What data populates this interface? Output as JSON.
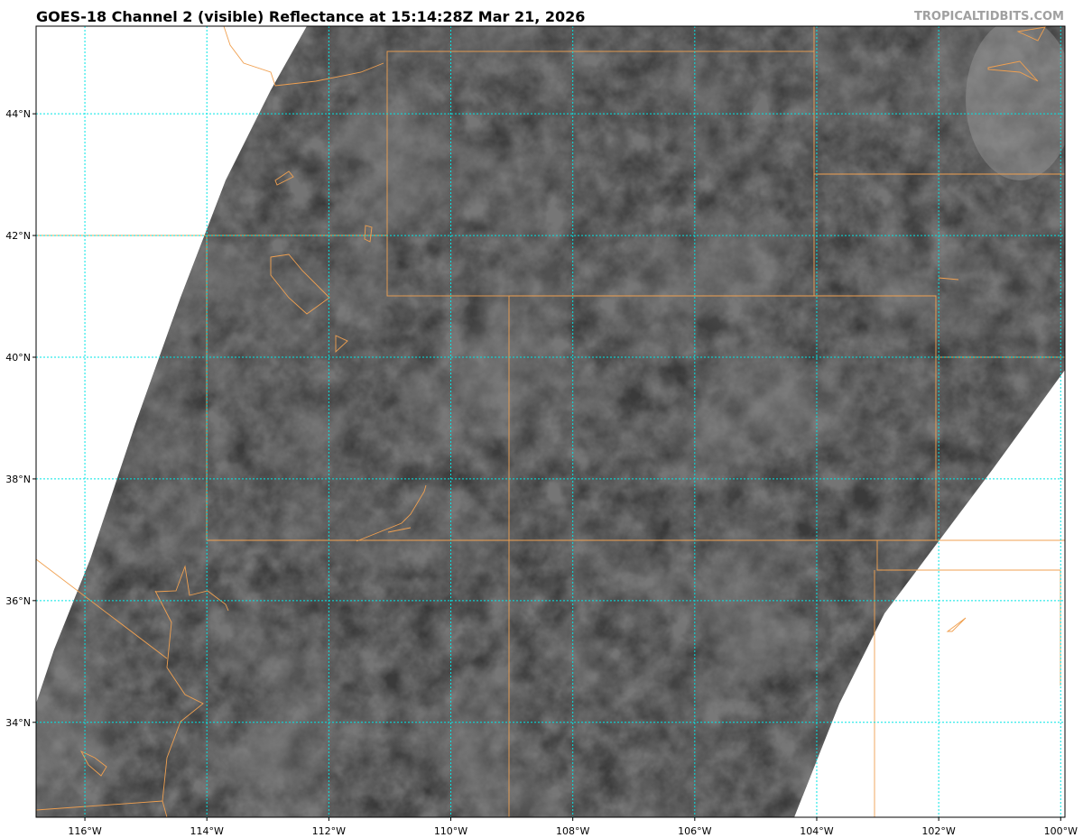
{
  "title": "GOES-18 Channel 2 (visible) Reflectance at 15:14:28Z Mar 21, 2026",
  "watermark": "TROPICALTIDBITS.COM",
  "map": {
    "lon_range": [
      -116.8,
      -99.93
    ],
    "lat_range": [
      32.44,
      45.44
    ],
    "lon_ticks": [
      {
        "value": -116,
        "label": "116°W"
      },
      {
        "value": -114,
        "label": "114°W"
      },
      {
        "value": -112,
        "label": "112°W"
      },
      {
        "value": -110,
        "label": "110°W"
      },
      {
        "value": -108,
        "label": "108°W"
      },
      {
        "value": -106,
        "label": "106°W"
      },
      {
        "value": -104,
        "label": "104°W"
      },
      {
        "value": -102,
        "label": "102°W"
      },
      {
        "value": -100,
        "label": "100°W"
      }
    ],
    "lat_ticks": [
      {
        "value": 44,
        "label": "44°N"
      },
      {
        "value": 42,
        "label": "42°N"
      },
      {
        "value": 40,
        "label": "40°N"
      },
      {
        "value": 38,
        "label": "38°N"
      },
      {
        "value": 36,
        "label": "36°N"
      },
      {
        "value": 34,
        "label": "34°N"
      }
    ],
    "colors": {
      "gridline": "#00e5e5",
      "border": "#f0a050",
      "imagery": "#3c3c3c",
      "outside_swath": "#ffffff"
    }
  }
}
